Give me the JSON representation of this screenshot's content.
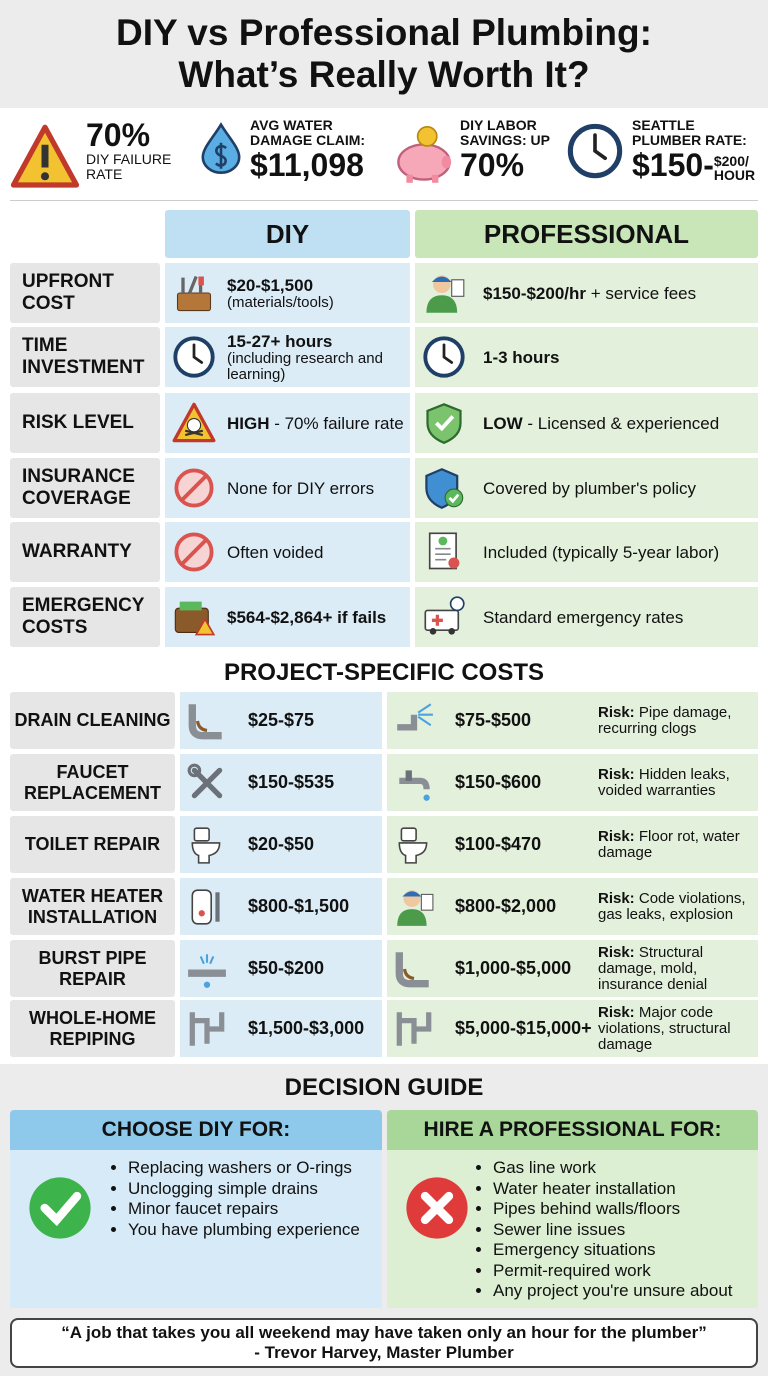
{
  "header": {
    "title_lines": [
      "DIY vs Professional Plumbing:",
      "What’s Really Worth It?"
    ]
  },
  "stats": [
    {
      "value": "70%",
      "label": "DIY FAILURE RATE"
    },
    {
      "label": "AVG WATER DAMAGE CLAIM:",
      "value": "$11,098"
    },
    {
      "label": "DIY LABOR SAVINGS: UP",
      "value": "70%"
    },
    {
      "label": "SEATTLE PLUMBER RATE:",
      "value": "$150-",
      "unit": "$200/ HOUR"
    }
  ],
  "comparison": {
    "headers": [
      "DIY",
      "PROFESSIONAL"
    ],
    "rows": [
      {
        "label": "UPFRONT COST",
        "diy": {
          "strong": "$20-$1,500",
          "note": "(materials/tools)"
        },
        "pro": {
          "strong": "$150-$200/hr",
          "text": " + service fees"
        }
      },
      {
        "label": "TIME INVESTMENT",
        "diy": {
          "strong": "15-27+ hours",
          "note": "(including research and learning)"
        },
        "pro": {
          "strong": "1-3 hours"
        }
      },
      {
        "label": "RISK LEVEL",
        "diy": {
          "strong": "HIGH",
          "text": " - 70% failure rate"
        },
        "pro": {
          "strong": "LOW",
          "text": " - Licensed & experienced"
        }
      },
      {
        "label": "INSURANCE COVERAGE",
        "diy": {
          "text": "None for DIY errors"
        },
        "pro": {
          "text": "Covered by plumber's policy"
        }
      },
      {
        "label": "WARRANTY",
        "diy": {
          "text": "Often voided"
        },
        "pro": {
          "text": "Included (typically 5-year labor)"
        }
      },
      {
        "label": "EMERGENCY COSTS",
        "diy": {
          "strong": "$564-$2,864+ if fails"
        },
        "pro": {
          "text": "Standard emergency rates"
        }
      }
    ]
  },
  "projects": {
    "title": "PROJECT-SPECIFIC COSTS",
    "risk_label": "Risk:",
    "rows": [
      {
        "label": "DRAIN CLEANING",
        "diy": "$25-$75",
        "pro": "$75-$500",
        "risk": "Pipe damage, recurring clogs"
      },
      {
        "label": "FAUCET REPLACEMENT",
        "diy": "$150-$535",
        "pro": "$150-$600",
        "risk": "Hidden leaks, voided warranties"
      },
      {
        "label": "TOILET REPAIR",
        "diy": "$20-$50",
        "pro": "$100-$470",
        "risk": "Floor rot, water damage"
      },
      {
        "label": "WATER HEATER INSTALLATION",
        "diy": "$800-$1,500",
        "pro": "$800-$2,000",
        "risk": "Code violations, gas leaks, explosion"
      },
      {
        "label": "BURST PIPE REPAIR",
        "diy": "$50-$200",
        "pro": "$1,000-$5,000",
        "risk": "Structural damage, mold, insurance denial"
      },
      {
        "label": "WHOLE-HOME REPIPING",
        "diy": "$1,500-$3,000",
        "pro": "$5,000-$15,000+",
        "risk": "Major code violations, structural damage"
      }
    ]
  },
  "decision": {
    "title": "DECISION GUIDE",
    "diy": {
      "heading": "CHOOSE DIY FOR:",
      "items": [
        "Replacing washers or O-rings",
        "Unclogging simple drains",
        "Minor faucet repairs",
        "You have plumbing experience"
      ]
    },
    "pro": {
      "heading": "HIRE A PROFESSIONAL FOR:",
      "items": [
        "Gas line work",
        "Water heater installation",
        "Pipes behind walls/floors",
        "Sewer line issues",
        "Emergency situations",
        "Permit-required work",
        "Any project you're unsure about"
      ]
    }
  },
  "quote": {
    "text": "“A job that takes you all weekend may have taken only an hour for the plumber”",
    "author": "- Trevor Harvey, Master Plumber"
  }
}
